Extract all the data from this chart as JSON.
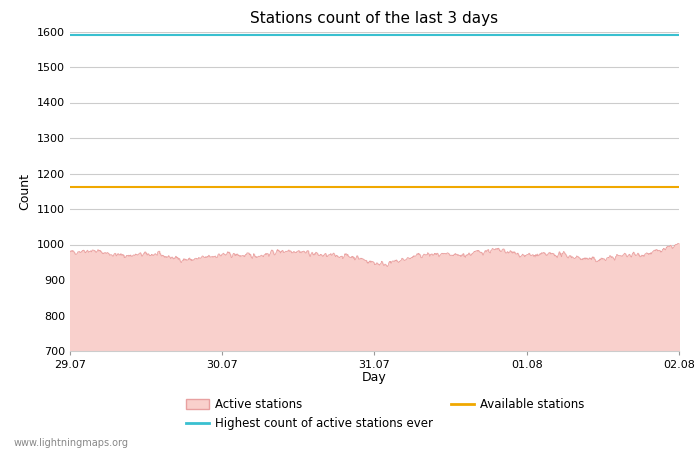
{
  "title": "Stations count of the last 3 days",
  "xlabel": "Day",
  "ylabel": "Count",
  "ylim": [
    700,
    1600
  ],
  "yticks": [
    700,
    800,
    900,
    1000,
    1100,
    1200,
    1300,
    1400,
    1500,
    1600
  ],
  "x_start": 0,
  "x_end": 72,
  "highest_ever": 1590,
  "available_stations": 1163,
  "active_mean": 970,
  "active_noise_std": 8,
  "cyan_color": "#39c0d0",
  "orange_color": "#f0a800",
  "pink_fill": "#f9d0cc",
  "pink_line": "#e8a0a0",
  "background_color": "#ffffff",
  "grid_color": "#cccccc",
  "xtick_labels": [
    "29.07",
    "30.07",
    "31.07",
    "01.08",
    "02.08"
  ],
  "xtick_positions": [
    0,
    18,
    36,
    54,
    72
  ],
  "watermark": "www.lightningmaps.org",
  "title_fontsize": 11,
  "axis_fontsize": 9,
  "tick_fontsize": 8,
  "legend_fontsize": 8.5
}
